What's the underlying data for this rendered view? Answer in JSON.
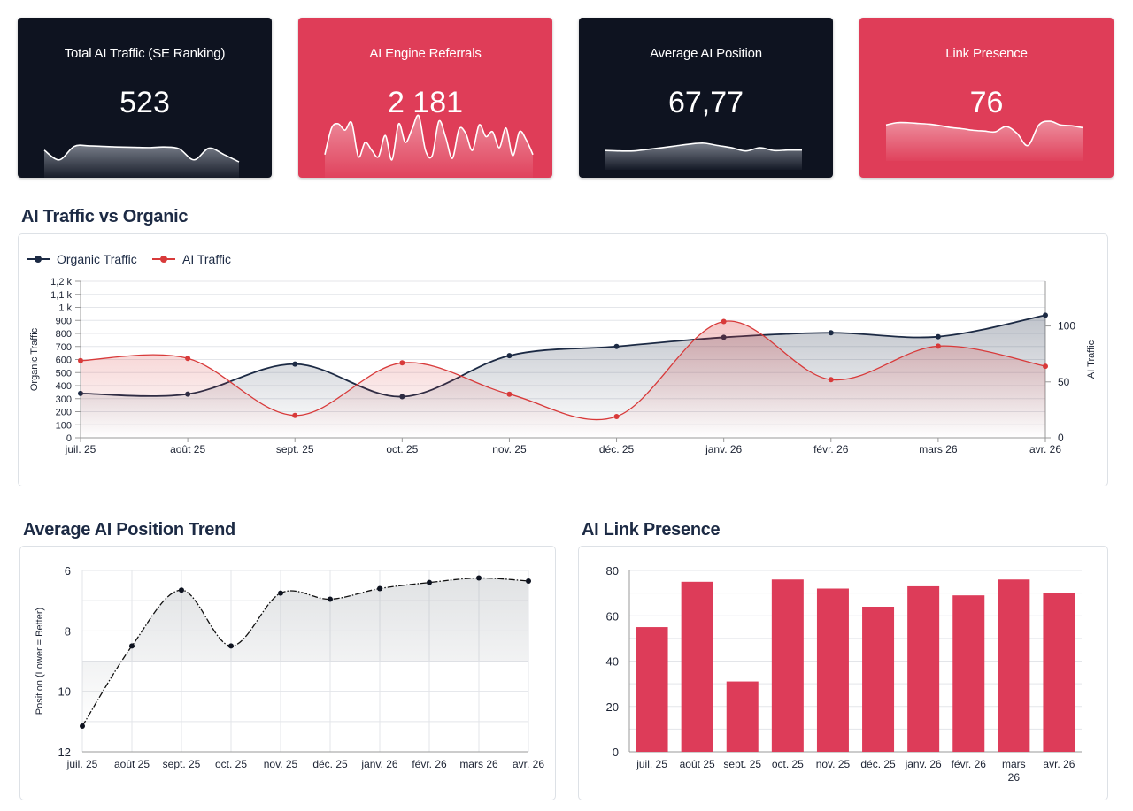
{
  "colors": {
    "navy": "#0e1320",
    "crimson": "#df3d58",
    "organic": "#1c2a44",
    "ai": "#d83a3a",
    "bar": "#dd3c59"
  },
  "kpis": [
    {
      "title": "Total AI Traffic (SE Ranking)",
      "value": "523",
      "theme": "dark"
    },
    {
      "title": "AI Engine Referrals",
      "value": "2 181",
      "theme": "red"
    },
    {
      "title": "Average AI Position",
      "value": "67,77",
      "theme": "dark"
    },
    {
      "title": "Link Presence",
      "value": "76",
      "theme": "red"
    }
  ],
  "sparklines": [
    [
      0.55,
      0.22,
      0.68,
      0.7,
      0.68,
      0.66,
      0.65,
      0.64,
      0.66,
      0.6,
      0.22,
      0.62,
      0.4,
      0.15
    ],
    [
      0.22,
      0.72,
      0.8,
      0.68,
      0.82,
      0.18,
      0.45,
      0.3,
      0.18,
      0.58,
      0.12,
      0.8,
      0.45,
      0.7,
      0.95,
      0.3,
      0.2,
      0.85,
      0.55,
      0.15,
      0.7,
      0.62,
      0.3,
      0.78,
      0.56,
      0.65,
      0.35,
      0.72,
      0.2,
      0.65,
      0.5,
      0.22
    ],
    [
      0.3,
      0.28,
      0.28,
      0.35,
      0.42,
      0.5,
      0.58,
      0.62,
      0.52,
      0.42,
      0.28,
      0.42,
      0.3,
      0.32,
      0.32
    ],
    [
      0.62,
      0.68,
      0.68,
      0.66,
      0.64,
      0.6,
      0.55,
      0.52,
      0.48,
      0.46,
      0.44,
      0.58,
      0.4,
      0.08,
      0.62,
      0.72,
      0.62,
      0.6,
      0.55
    ]
  ],
  "traffic_section": {
    "title": "AI Traffic vs Organic"
  },
  "position_section": {
    "title": "Average AI Position Trend"
  },
  "presence_section": {
    "title": "AI Link Presence"
  },
  "chart_data": [
    {
      "type": "line",
      "title": "AI Traffic vs Organic",
      "categories": [
        "juil. 25",
        "août 25",
        "sept. 25",
        "oct. 25",
        "nov. 25",
        "déc. 25",
        "janv. 26",
        "févr. 26",
        "mars 26",
        "avr. 26"
      ],
      "series": [
        {
          "name": "Organic Traffic",
          "axis": "left",
          "color": "#1c2a44",
          "values": [
            340,
            335,
            565,
            315,
            630,
            700,
            770,
            805,
            775,
            940
          ]
        },
        {
          "name": "AI Traffic",
          "axis": "right",
          "color": "#d83a3a",
          "values": [
            69,
            71,
            20,
            67,
            39,
            19,
            104,
            52,
            82,
            64
          ]
        }
      ],
      "ylabel": "Organic Traffic",
      "ylabel_right": "AI Traffic",
      "ylim": [
        0,
        1200
      ],
      "ylim_right": [
        0,
        140
      ],
      "yticks": [
        0,
        100,
        200,
        300,
        400,
        500,
        600,
        700,
        800,
        900,
        1000,
        1100,
        1200
      ],
      "ytick_labels": [
        "0",
        "100",
        "200",
        "300",
        "400",
        "500",
        "600",
        "700",
        "800",
        "900",
        "1 k",
        "1,1 k",
        "1,2 k"
      ],
      "yticks_right": [
        0,
        50,
        100
      ],
      "ytick_labels_right": [
        "0",
        "50",
        "100"
      ],
      "legend": "top-left",
      "grid": true
    },
    {
      "type": "line",
      "title": "Average AI Position Trend",
      "categories": [
        "juil. 25",
        "août 25",
        "sept. 25",
        "oct. 25",
        "nov. 25",
        "déc. 25",
        "janv. 26",
        "févr. 26",
        "mars 26",
        "avr. 26"
      ],
      "series": [
        {
          "name": "Position",
          "color": "#111111",
          "values": [
            11.15,
            8.5,
            6.65,
            8.5,
            6.75,
            6.95,
            6.6,
            6.4,
            6.25,
            6.35
          ]
        }
      ],
      "ylabel": "Position (Lower = Better)",
      "ylim": [
        12,
        6
      ],
      "inverted": true,
      "yticks": [
        6,
        8,
        10,
        12
      ],
      "ytick_labels": [
        "6",
        "8",
        "10",
        "12"
      ],
      "grid": true
    },
    {
      "type": "bar",
      "title": "AI Link Presence",
      "categories": [
        "juil. 25",
        "août 25",
        "sept. 25",
        "oct. 25",
        "nov. 25",
        "déc. 25",
        "janv. 26",
        "févr. 26",
        "mars 26",
        "avr. 26"
      ],
      "category_lines": [
        [
          "juil. 25"
        ],
        [
          "août 25"
        ],
        [
          "sept. 25"
        ],
        [
          "oct. 25"
        ],
        [
          "nov. 25"
        ],
        [
          "déc. 25"
        ],
        [
          "janv. 26"
        ],
        [
          "févr. 26"
        ],
        [
          "mars",
          "26"
        ],
        [
          "avr. 26"
        ]
      ],
      "values": [
        55,
        75,
        31,
        76,
        72,
        64,
        73,
        69,
        76,
        70
      ],
      "ylim": [
        0,
        80
      ],
      "yticks": [
        0,
        20,
        40,
        60,
        80
      ],
      "color": "#dd3c59",
      "grid": true
    }
  ]
}
